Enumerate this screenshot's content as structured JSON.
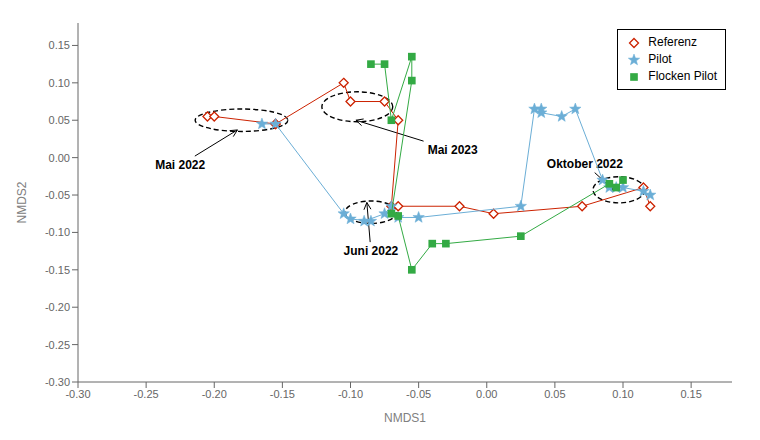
{
  "chart_data": {
    "type": "scatter",
    "xlabel": "NMDS1",
    "ylabel": "NMDS2",
    "xlim": [
      -0.3,
      0.18
    ],
    "ylim": [
      -0.3,
      0.18
    ],
    "xticks": [
      {
        "value": -0.3,
        "label": "-0.30"
      },
      -0.25,
      {
        "value": -0.2,
        "label": "-0.20"
      },
      -0.15,
      {
        "value": -0.1,
        "label": "-0.10"
      },
      -0.05,
      {
        "value": 0,
        "label": "0.00"
      },
      0.05,
      {
        "value": 0.1,
        "label": "0.10"
      },
      0.15
    ],
    "yticks": [
      {
        "value": -0.3,
        "label": "-0.30"
      },
      -0.25,
      {
        "value": -0.2,
        "label": "-0.20"
      },
      -0.15,
      {
        "value": -0.1,
        "label": "-0.10"
      },
      -0.05,
      {
        "value": 0,
        "label": "0.00"
      },
      0.05,
      {
        "value": 0.1,
        "label": "0.10"
      },
      0.15
    ],
    "grid": false,
    "legend": "upper right",
    "series": [
      {
        "name": "Referenz",
        "color": "#CC2200",
        "marker": "diamond",
        "line_style": "solid",
        "x": [
          -0.205,
          -0.2,
          -0.155,
          -0.155,
          -0.105,
          -0.1,
          -0.075,
          -0.065,
          -0.07,
          -0.065,
          -0.02,
          0.005,
          0.07,
          0.115,
          0.12
        ],
        "values": [
          0.055,
          0.055,
          0.045,
          0.045,
          0.1,
          0.075,
          0.075,
          0.05,
          -0.065,
          -0.065,
          -0.065,
          -0.075,
          -0.065,
          -0.04,
          -0.065
        ]
      },
      {
        "name": "Pilot",
        "color": "#6BAED6",
        "marker": "star",
        "line_style": "solid",
        "x": [
          -0.165,
          -0.155,
          -0.105,
          -0.1,
          -0.085,
          -0.09,
          -0.075,
          -0.07,
          -0.065,
          -0.05,
          0.025,
          0.035,
          0.04,
          0.04,
          0.055,
          0.065,
          0.085,
          0.09,
          0.095,
          0.1,
          0.115,
          0.12
        ],
        "values": [
          0.045,
          0.045,
          -0.075,
          -0.082,
          -0.085,
          -0.085,
          -0.075,
          -0.065,
          -0.08,
          -0.08,
          -0.065,
          0.065,
          0.065,
          0.06,
          0.055,
          0.065,
          -0.03,
          -0.04,
          -0.04,
          -0.04,
          -0.045,
          -0.05
        ]
      },
      {
        "name": "Flocken Pilot",
        "color": "#33AA44",
        "marker": "square",
        "line_style": "solid",
        "x": [
          -0.085,
          -0.075,
          -0.07,
          -0.055,
          -0.055,
          -0.07,
          -0.065,
          -0.055,
          -0.04,
          -0.03,
          0.025,
          0.09,
          0.095,
          0.1
        ],
        "values": [
          0.125,
          0.125,
          0.05,
          0.135,
          0.103,
          -0.075,
          -0.078,
          -0.15,
          -0.115,
          -0.115,
          -0.105,
          -0.035,
          -0.04,
          -0.03
        ]
      }
    ],
    "ellipses": [
      {
        "cx": -0.18,
        "cy": 0.05,
        "w": 0.068,
        "h": 0.03
      },
      {
        "cx": -0.095,
        "cy": 0.068,
        "w": 0.052,
        "h": 0.04
      },
      {
        "cx": -0.085,
        "cy": -0.073,
        "w": 0.038,
        "h": 0.03
      },
      {
        "cx": 0.097,
        "cy": -0.043,
        "w": 0.038,
        "h": 0.035
      }
    ],
    "annotations": [
      {
        "text": "Mai 2022",
        "xy": [
          -0.183,
          0.037
        ],
        "xytext": [
          -0.225,
          -0.01
        ]
      },
      {
        "text": "Mai 2023",
        "xy": [
          -0.096,
          0.05
        ],
        "xytext": [
          -0.025,
          0.01
        ]
      },
      {
        "text": "Juni 2022",
        "xy": [
          -0.088,
          -0.06
        ],
        "xytext": [
          -0.085,
          -0.125
        ]
      },
      {
        "text": "Oktober 2022",
        "xy": [
          0.093,
          -0.043
        ],
        "xytext": [
          0.072,
          -0.008
        ]
      }
    ]
  }
}
